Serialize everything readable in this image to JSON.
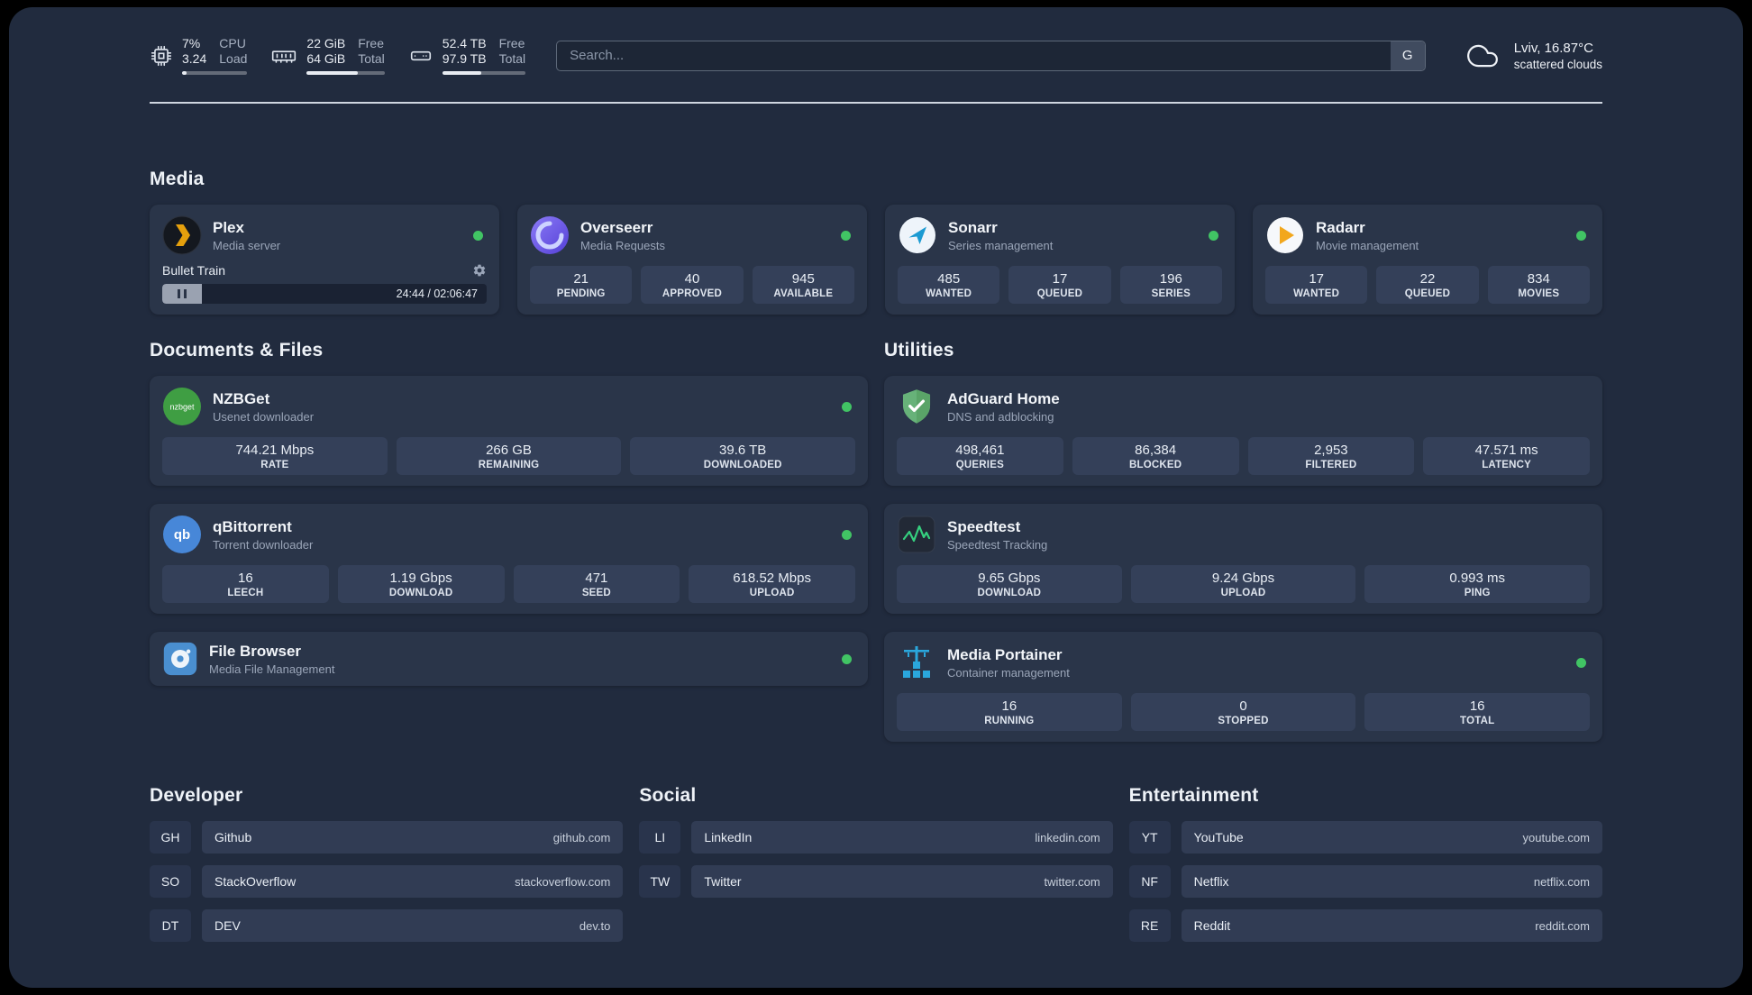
{
  "colors": {
    "status_online": "#41c464",
    "accent_plex": "#e5a00d",
    "accent_overseerr": "#6c5ce7",
    "accent_sonarr": "#1b9ad2",
    "accent_radarr": "#f2a71c",
    "accent_nzbget": "#3f9e43",
    "accent_qbittorrent": "#4787d8",
    "accent_filebrowser": "#4a8fd0",
    "accent_adguard": "#67b279",
    "accent_speedtest": "#35d07f",
    "accent_portainer": "#2aa7dd"
  },
  "topbar": {
    "cpu": {
      "value_top": "7%",
      "value_bottom": "3.24",
      "label_top": "CPU",
      "label_bottom": "Load",
      "bar_percent": 7
    },
    "ram": {
      "value_top": "22 GiB",
      "value_bottom": "64 GiB",
      "label_top": "Free",
      "label_bottom": "Total",
      "bar_percent": 66
    },
    "disk": {
      "value_top": "52.4 TB",
      "value_bottom": "97.9 TB",
      "label_top": "Free",
      "label_bottom": "Total",
      "bar_percent": 47
    },
    "search": {
      "placeholder": "Search...",
      "engine_label": "G"
    },
    "weather": {
      "location": "Lviv, 16.87°C",
      "condition": "scattered clouds"
    }
  },
  "sections": {
    "media": {
      "title": "Media",
      "apps": [
        {
          "name": "Plex",
          "subtitle": "Media server",
          "online": true,
          "player": {
            "now_playing": "Bullet Train",
            "time": "24:44 / 02:06:47"
          }
        },
        {
          "name": "Overseerr",
          "subtitle": "Media Requests",
          "online": true,
          "stats": [
            {
              "value": "21",
              "label": "PENDING"
            },
            {
              "value": "40",
              "label": "APPROVED"
            },
            {
              "value": "945",
              "label": "AVAILABLE"
            }
          ]
        },
        {
          "name": "Sonarr",
          "subtitle": "Series management",
          "online": true,
          "stats": [
            {
              "value": "485",
              "label": "WANTED"
            },
            {
              "value": "17",
              "label": "QUEUED"
            },
            {
              "value": "196",
              "label": "SERIES"
            }
          ]
        },
        {
          "name": "Radarr",
          "subtitle": "Movie management",
          "online": true,
          "stats": [
            {
              "value": "17",
              "label": "WANTED"
            },
            {
              "value": "22",
              "label": "QUEUED"
            },
            {
              "value": "834",
              "label": "MOVIES"
            }
          ]
        }
      ]
    },
    "documents": {
      "title": "Documents & Files",
      "apps": [
        {
          "name": "NZBGet",
          "subtitle": "Usenet downloader",
          "online": true,
          "stats": [
            {
              "value": "744.21 Mbps",
              "label": "RATE"
            },
            {
              "value": "266 GB",
              "label": "REMAINING"
            },
            {
              "value": "39.6 TB",
              "label": "DOWNLOADED"
            }
          ]
        },
        {
          "name": "qBittorrent",
          "subtitle": "Torrent downloader",
          "online": true,
          "stats": [
            {
              "value": "16",
              "label": "LEECH"
            },
            {
              "value": "1.19 Gbps",
              "label": "DOWNLOAD"
            },
            {
              "value": "471",
              "label": "SEED"
            },
            {
              "value": "618.52 Mbps",
              "label": "UPLOAD"
            }
          ]
        },
        {
          "name": "File Browser",
          "subtitle": "Media File Management",
          "online": true
        }
      ]
    },
    "utilities": {
      "title": "Utilities",
      "apps": [
        {
          "name": "AdGuard Home",
          "subtitle": "DNS and adblocking",
          "stats": [
            {
              "value": "498,461",
              "label": "QUERIES"
            },
            {
              "value": "86,384",
              "label": "BLOCKED"
            },
            {
              "value": "2,953",
              "label": "FILTERED"
            },
            {
              "value": "47.571 ms",
              "label": "LATENCY"
            }
          ]
        },
        {
          "name": "Speedtest",
          "subtitle": "Speedtest Tracking",
          "stats": [
            {
              "value": "9.65 Gbps",
              "label": "DOWNLOAD"
            },
            {
              "value": "9.24 Gbps",
              "label": "UPLOAD"
            },
            {
              "value": "0.993 ms",
              "label": "PING"
            }
          ]
        },
        {
          "name": "Media Portainer",
          "subtitle": "Container management",
          "online": true,
          "stats": [
            {
              "value": "16",
              "label": "RUNNING"
            },
            {
              "value": "0",
              "label": "STOPPED"
            },
            {
              "value": "16",
              "label": "TOTAL"
            }
          ]
        }
      ]
    },
    "developer": {
      "title": "Developer",
      "links": [
        {
          "abbr": "GH",
          "name": "Github",
          "domain": "github.com"
        },
        {
          "abbr": "SO",
          "name": "StackOverflow",
          "domain": "stackoverflow.com"
        },
        {
          "abbr": "DT",
          "name": "DEV",
          "domain": "dev.to"
        }
      ]
    },
    "social": {
      "title": "Social",
      "links": [
        {
          "abbr": "LI",
          "name": "LinkedIn",
          "domain": "linkedin.com"
        },
        {
          "abbr": "TW",
          "name": "Twitter",
          "domain": "twitter.com"
        }
      ]
    },
    "entertainment": {
      "title": "Entertainment",
      "links": [
        {
          "abbr": "YT",
          "name": "YouTube",
          "domain": "youtube.com"
        },
        {
          "abbr": "NF",
          "name": "Netflix",
          "domain": "netflix.com"
        },
        {
          "abbr": "RE",
          "name": "Reddit",
          "domain": "reddit.com"
        }
      ]
    }
  }
}
